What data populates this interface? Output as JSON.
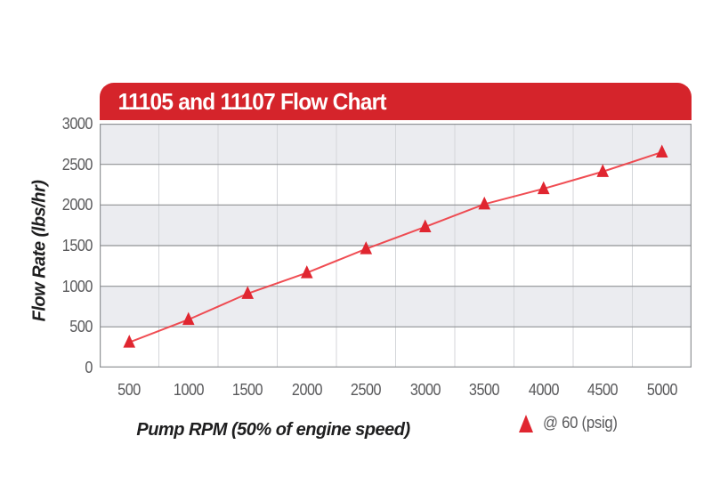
{
  "chart": {
    "title_bar_color": "#d5242b",
    "title_text_color": "#ffffff",
    "colors": {
      "band_fill": "#ebecf0",
      "band_alt_fill": "#ffffff",
      "h_gridline": "#909295",
      "v_gridline": "#d4d6da",
      "plot_border": "#909295",
      "line": "#ee3a40",
      "marker": "#e02630",
      "tick_text": "#59595b",
      "axis_title_text": "#1e1e1f"
    },
    "legend": {
      "marker_icon": "triangle-up-icon",
      "marker_color": "#e02630",
      "label": "@ 60 (psig)"
    }
  },
  "chart_data": {
    "type": "line",
    "title": "11105 and 11107 Flow Chart",
    "xlabel": "Pump RPM (50% of engine speed)",
    "ylabel": "Flow Rate (lbs/hr)",
    "categories": [
      500,
      1000,
      1500,
      2000,
      2500,
      3000,
      3500,
      4000,
      4500,
      5000
    ],
    "series": [
      {
        "name": "@ 60 (psig)",
        "marker": "triangle-up",
        "color": "#ee3a40",
        "values": [
          310,
          590,
          910,
          1165,
          1460,
          1730,
          2010,
          2200,
          2410,
          2650
        ]
      }
    ],
    "ylim": [
      0,
      3000
    ],
    "ytick_step": 500,
    "xtick_labels": [
      "500",
      "1000",
      "1500",
      "2000",
      "2500",
      "3000",
      "3500",
      "4000",
      "4500",
      "5000"
    ],
    "ytick_labels": [
      "0",
      "500",
      "1000",
      "1500",
      "2000",
      "2500",
      "3000"
    ],
    "grid": "horizontal lines every 500; light vertical lines at category boundaries; alternating gray/white 500-unit bands",
    "legend_position": "bottom-right"
  }
}
